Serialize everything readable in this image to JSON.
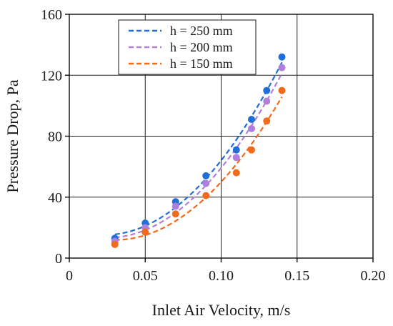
{
  "chart_data": {
    "type": "scatter",
    "xlabel": "Inlet Air Velocity, m/s",
    "ylabel": "Pressure Drop, Pa",
    "xlim": [
      0,
      0.2
    ],
    "ylim": [
      0,
      160
    ],
    "x_ticks": [
      0,
      0.05,
      0.1,
      0.15,
      0.2
    ],
    "x_tick_labels": [
      "0",
      "0.05",
      "0.10",
      "0.15",
      "0.20"
    ],
    "y_ticks": [
      0,
      40,
      80,
      120,
      160
    ],
    "y_tick_labels": [
      "0",
      "40",
      "80",
      "120",
      "160"
    ],
    "grid": true,
    "legend_position": "top-center",
    "series": [
      {
        "name": "h = 250 mm",
        "color": "#1f6fd6",
        "x": [
          0.03,
          0.05,
          0.07,
          0.09,
          0.11,
          0.12,
          0.13,
          0.14
        ],
        "y": [
          13,
          23,
          37,
          54,
          71,
          91,
          110,
          132
        ],
        "fit": "dashed"
      },
      {
        "name": "h = 200 mm",
        "color": "#b07fdc",
        "x": [
          0.03,
          0.05,
          0.07,
          0.09,
          0.11,
          0.12,
          0.13,
          0.14
        ],
        "y": [
          11,
          20,
          34,
          49,
          66,
          85,
          103,
          125
        ],
        "fit": "dashed"
      },
      {
        "name": "h = 150 mm",
        "color": "#f26a1b",
        "x": [
          0.03,
          0.05,
          0.07,
          0.09,
          0.11,
          0.12,
          0.13,
          0.14
        ],
        "y": [
          9,
          17,
          29,
          41,
          56,
          71,
          90,
          110
        ],
        "fit": "dashed"
      }
    ]
  }
}
